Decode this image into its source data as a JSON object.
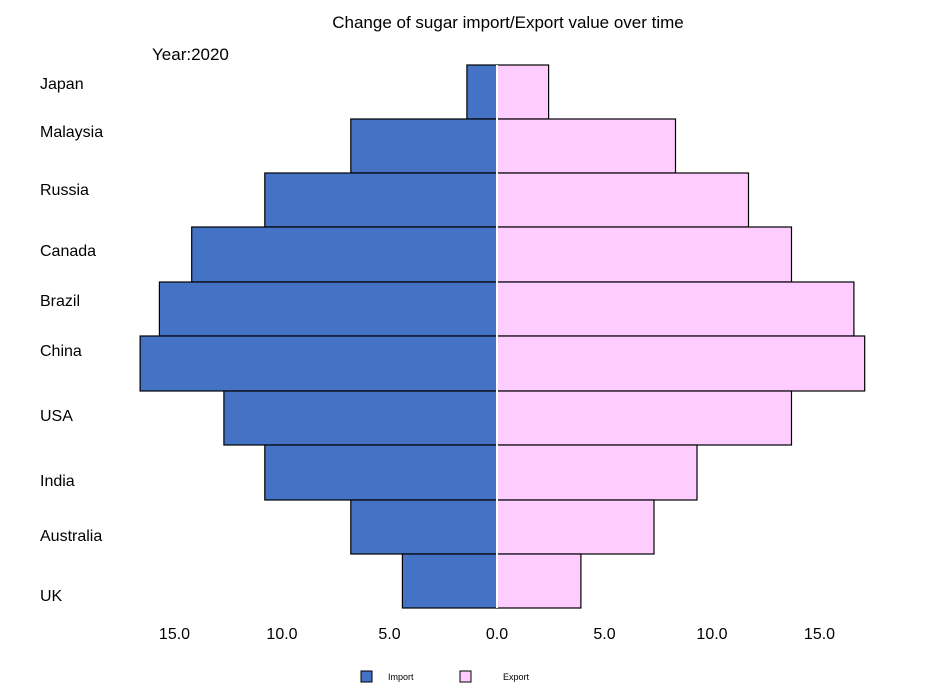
{
  "chart_data": {
    "type": "bar",
    "orientation": "horizontal-butterfly",
    "title": "Change of sugar import/Export value over time",
    "annotation": "Year:2020",
    "categories": [
      "Japan",
      "Malaysia",
      "Russia",
      "Canada",
      "Brazil",
      "China",
      "USA",
      "India",
      "Australia",
      "UK"
    ],
    "series": [
      {
        "name": "Import",
        "color": "#4472C4",
        "side": "left",
        "values": [
          1.4,
          6.8,
          10.8,
          14.2,
          15.7,
          16.6,
          12.7,
          10.8,
          6.8,
          4.4
        ]
      },
      {
        "name": "Export",
        "color": "#FFCCFF",
        "side": "right",
        "values": [
          2.4,
          8.3,
          11.7,
          13.7,
          16.6,
          17.1,
          13.7,
          9.3,
          7.3,
          3.9
        ]
      }
    ],
    "xticks": [
      {
        "value": -15,
        "label": "15.0"
      },
      {
        "value": -10,
        "label": "10.0"
      },
      {
        "value": -5,
        "label": "5.0"
      },
      {
        "value": 0,
        "label": "0.0"
      },
      {
        "value": 5,
        "label": "5.0"
      },
      {
        "value": 10,
        "label": "10.0"
      },
      {
        "value": 15,
        "label": "15.0"
      }
    ],
    "xlim": [
      -17,
      17.5
    ],
    "xlabel": "",
    "ylabel": "",
    "grid": false,
    "legend_position": "bottom-center"
  }
}
